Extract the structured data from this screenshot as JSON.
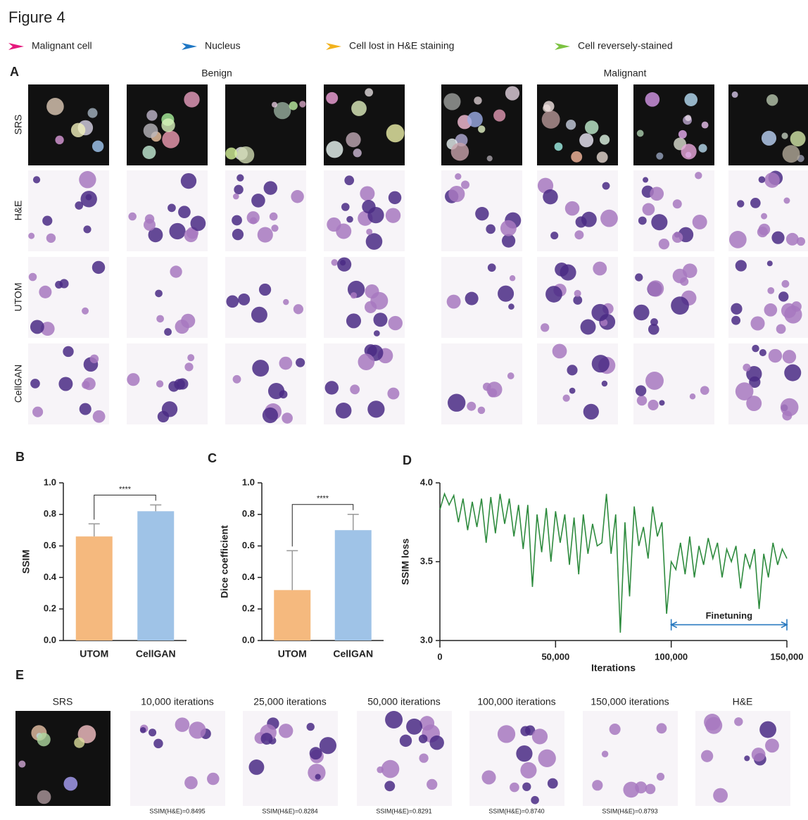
{
  "figure_title": "Figure 4",
  "legend": [
    {
      "name": "Malignant cell",
      "color": "#e5197d"
    },
    {
      "name": "Nucleus",
      "color": "#1f77c4"
    },
    {
      "name": "Cell lost in H&E staining",
      "color": "#f2b21c"
    },
    {
      "name": "Cell reversely-stained",
      "color": "#7cc242"
    }
  ],
  "panel_a": {
    "label": "A",
    "groups": [
      "Benign",
      "Malignant"
    ],
    "rows": [
      "SRS",
      "H&E",
      "UTOM",
      "CellGAN"
    ]
  },
  "chart_data": [
    {
      "type": "bar",
      "panel": "B",
      "ylabel": "SSIM",
      "categories": [
        "UTOM",
        "CellGAN"
      ],
      "values": [
        0.66,
        0.82
      ],
      "errors": [
        0.08,
        0.04
      ],
      "colors": [
        "#f5b97e",
        "#9fc3e7"
      ],
      "ylim": [
        0,
        1
      ],
      "yticks": [
        {
          "value": 0,
          "label": "0.0"
        },
        0.2,
        0.4,
        0.6,
        0.8,
        {
          "value": 1,
          "label": "1.0"
        }
      ],
      "significance": "****"
    },
    {
      "type": "bar",
      "panel": "C",
      "ylabel": "Dice coefficient",
      "categories": [
        "UTOM",
        "CellGAN"
      ],
      "values": [
        0.32,
        0.7
      ],
      "errors": [
        0.25,
        0.1
      ],
      "colors": [
        "#f5b97e",
        "#9fc3e7"
      ],
      "ylim": [
        0,
        1
      ],
      "yticks": [
        {
          "value": 0,
          "label": "0.0"
        },
        0.2,
        0.4,
        0.6,
        0.8,
        {
          "value": 1,
          "label": "1.0"
        }
      ],
      "significance": "****"
    },
    {
      "type": "line",
      "panel": "D",
      "xlabel": "Iterations",
      "ylabel": "SSIM loss",
      "color": "#2e8b3e",
      "x": [
        0,
        2000,
        4000,
        6000,
        8000,
        10000,
        12000,
        14000,
        16000,
        18000,
        20000,
        22000,
        24000,
        26000,
        28000,
        30000,
        32000,
        34000,
        36000,
        38000,
        40000,
        42000,
        44000,
        46000,
        48000,
        50000,
        52000,
        54000,
        56000,
        58000,
        60000,
        62000,
        64000,
        66000,
        68000,
        70000,
        72000,
        74000,
        76000,
        78000,
        80000,
        82000,
        84000,
        86000,
        88000,
        90000,
        92000,
        94000,
        96000,
        98000,
        100000,
        102000,
        104000,
        106000,
        108000,
        110000,
        112000,
        114000,
        116000,
        118000,
        120000,
        122000,
        124000,
        126000,
        128000,
        130000,
        132000,
        134000,
        136000,
        138000,
        140000,
        142000,
        144000,
        146000,
        148000,
        150000
      ],
      "values": [
        3.83,
        3.93,
        3.86,
        3.92,
        3.75,
        3.9,
        3.7,
        3.88,
        3.72,
        3.9,
        3.62,
        3.91,
        3.68,
        3.93,
        3.74,
        3.9,
        3.66,
        3.86,
        3.58,
        3.86,
        3.34,
        3.8,
        3.56,
        3.84,
        3.5,
        3.82,
        3.62,
        3.8,
        3.48,
        3.78,
        3.42,
        3.8,
        3.55,
        3.74,
        3.6,
        3.62,
        3.93,
        3.55,
        3.8,
        3.05,
        3.75,
        3.28,
        3.85,
        3.6,
        3.72,
        3.52,
        3.85,
        3.66,
        3.75,
        3.17,
        3.5,
        3.45,
        3.62,
        3.42,
        3.66,
        3.4,
        3.6,
        3.48,
        3.65,
        3.52,
        3.62,
        3.4,
        3.58,
        3.5,
        3.6,
        3.33,
        3.55,
        3.46,
        3.58,
        3.2,
        3.55,
        3.4,
        3.62,
        3.48,
        3.58,
        3.52
      ],
      "xlim": [
        0,
        150000
      ],
      "xticks": [
        0,
        {
          "value": 50000,
          "label": "50,000"
        },
        {
          "value": 100000,
          "label": "100,000"
        },
        {
          "value": 150000,
          "label": "150,000"
        }
      ],
      "ylim": [
        3,
        4
      ],
      "yticks": [
        {
          "value": 3,
          "label": "3.0"
        },
        3.5,
        {
          "value": 4,
          "label": "4.0"
        }
      ],
      "annotation": {
        "text": "Finetuning",
        "x_range": [
          100000,
          150000
        ],
        "y": 3.1
      }
    }
  ],
  "panel_e": {
    "label": "E",
    "images": [
      {
        "label": "SRS"
      },
      {
        "label": "10,000 iterations",
        "caption": "SSIM(H&E)=0.8495"
      },
      {
        "label": "25,000 iterations",
        "caption": "SSIM(H&E)=0.8284"
      },
      {
        "label": "50,000 iterations",
        "caption": "SSIM(H&E)=0.8291"
      },
      {
        "label": "100,000 iterations",
        "caption": "SSIM(H&E)=0.8740"
      },
      {
        "label": "150,000 iterations",
        "caption": "SSIM(H&E)=0.8793"
      },
      {
        "label": "H&E"
      }
    ]
  }
}
